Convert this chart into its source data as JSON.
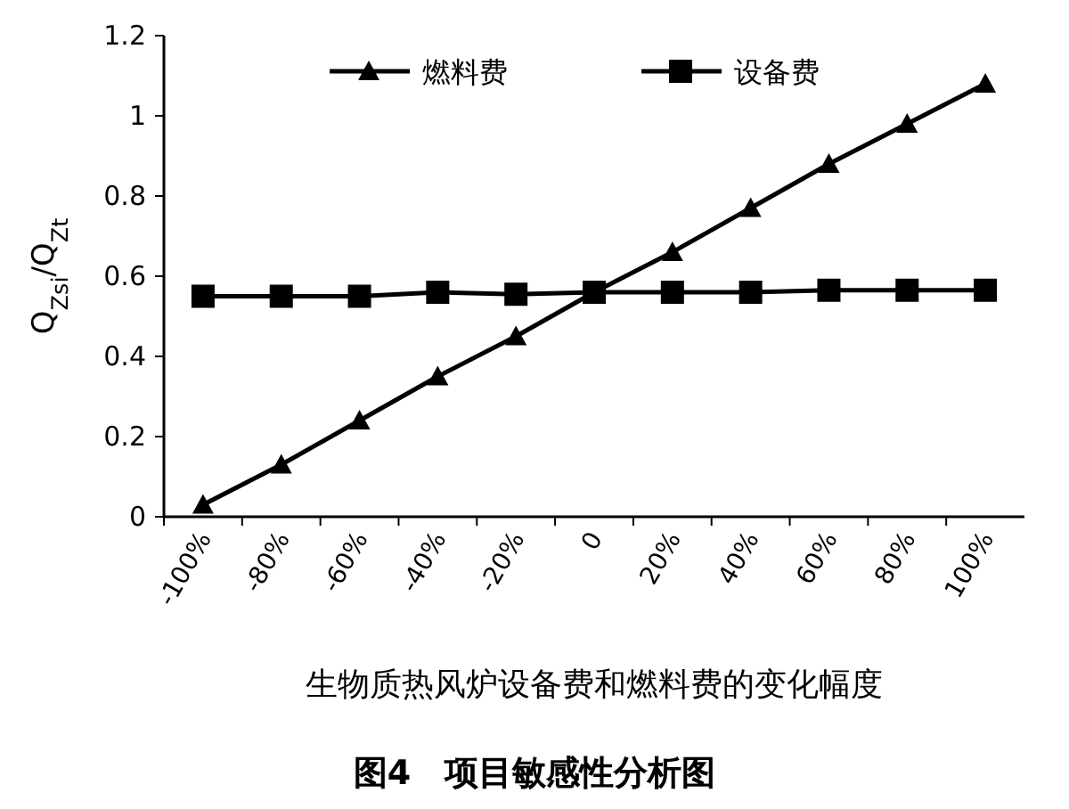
{
  "chart_data": {
    "type": "line",
    "title": "图4　项目敏感性分析图",
    "xlabel": "生物质热风炉设备费和燃料费的变化幅度",
    "ylabel": "Q$_{Zsi}$/Q$_{Zt}$",
    "categories": [
      "-100%",
      "-80%",
      "-60%",
      "-40%",
      "-20%",
      "0",
      "20%",
      "40%",
      "60%",
      "80%",
      "100%"
    ],
    "series": [
      {
        "name": "燃料费",
        "color": "#000000",
        "marker": "triangle",
        "values": [
          0.03,
          0.13,
          0.24,
          0.35,
          0.45,
          0.56,
          0.66,
          0.77,
          0.88,
          0.98,
          1.08
        ]
      },
      {
        "name": "设备费",
        "color": "#000000",
        "marker": "square",
        "values": [
          0.55,
          0.55,
          0.55,
          0.56,
          0.555,
          0.56,
          0.56,
          0.56,
          0.565,
          0.565,
          0.565
        ]
      }
    ],
    "ylim": [
      0,
      1.2
    ],
    "yticks": [
      0,
      0.2,
      0.4,
      0.6,
      0.8,
      1,
      1.2
    ],
    "grid": false,
    "legend": "top",
    "line_style": "solid"
  }
}
